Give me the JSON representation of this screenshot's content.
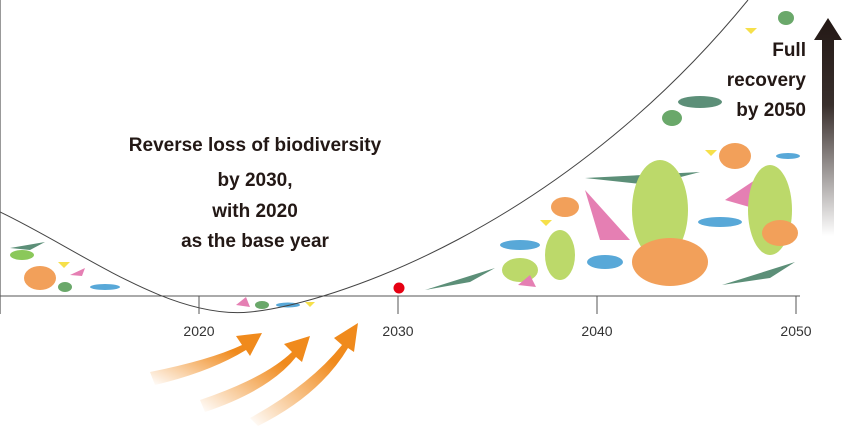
{
  "axis": {
    "ticks": [
      2020,
      2030,
      2040,
      2050
    ]
  },
  "annotations": {
    "target": [
      "Reverse loss of biodiversity",
      "by 2030,",
      "with 2020",
      "as the base year"
    ],
    "goal": [
      "Full",
      "recovery",
      "by 2050"
    ]
  }
}
